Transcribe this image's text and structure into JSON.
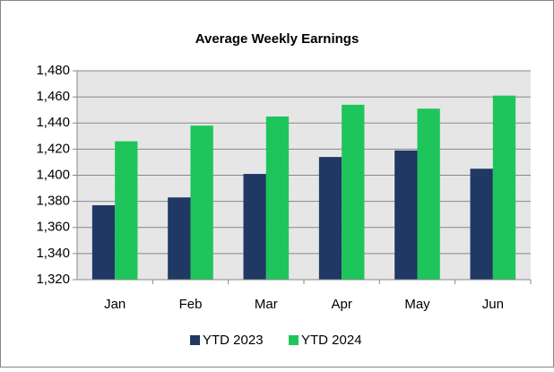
{
  "chart_data": {
    "type": "bar",
    "title": "Average Weekly Earnings",
    "categories": [
      "Jan",
      "Feb",
      "Mar",
      "Apr",
      "May",
      "Jun"
    ],
    "series": [
      {
        "name": "YTD 2023",
        "color": "#1f3864",
        "values": [
          1377,
          1383,
          1401,
          1414,
          1419,
          1405
        ]
      },
      {
        "name": "YTD 2024",
        "color": "#1ec55a",
        "values": [
          1426,
          1438,
          1445,
          1454,
          1451,
          1461
        ]
      }
    ],
    "ylim": [
      1320,
      1480
    ],
    "yticks": [
      {
        "value": 1320,
        "label": "1,320"
      },
      {
        "value": 1340,
        "label": "1,340"
      },
      {
        "value": 1360,
        "label": "1,360"
      },
      {
        "value": 1380,
        "label": "1,380"
      },
      {
        "value": 1400,
        "label": "1,400"
      },
      {
        "value": 1420,
        "label": "1,420"
      },
      {
        "value": 1440,
        "label": "1,440"
      },
      {
        "value": 1460,
        "label": "1,460"
      },
      {
        "value": 1480,
        "label": "1,480"
      }
    ],
    "grid": true,
    "legend": "bottom"
  }
}
